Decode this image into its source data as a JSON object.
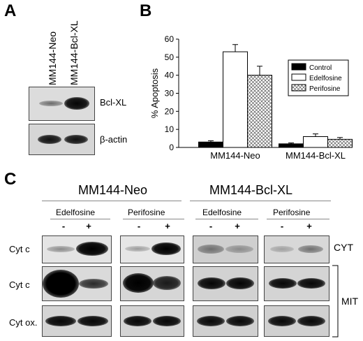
{
  "panels": {
    "a": "A",
    "b": "B",
    "c": "C"
  },
  "panel_a": {
    "lanes": [
      "MM144-Neo",
      "MM144-Bcl-XL"
    ],
    "rows": [
      "Bcl-XL",
      "β-actin"
    ]
  },
  "chart_data": {
    "type": "bar",
    "categories": [
      "MM144-Neo",
      "MM144-Bcl-XL"
    ],
    "series": [
      {
        "name": "Control",
        "values": [
          3,
          2
        ],
        "errors": [
          0.7,
          0.5
        ],
        "color": "#000000"
      },
      {
        "name": "Edelfosine",
        "values": [
          53,
          6
        ],
        "errors": [
          4,
          1.5
        ],
        "color": "#ffffff"
      },
      {
        "name": "Perifosine",
        "values": [
          40,
          4.5
        ],
        "errors": [
          5,
          1
        ],
        "color": "crosshatch"
      }
    ],
    "ylabel": "% Apoptosis",
    "ylim": [
      0,
      60
    ],
    "yticks": [
      "0",
      "10",
      "20",
      "30",
      "40",
      "50",
      "60"
    ],
    "legend": "right"
  },
  "panel_c": {
    "groups": [
      "MM144-Neo",
      "MM144-Bcl-XL"
    ],
    "drugs": [
      "Edelfosine",
      "Perifosine",
      "Edelfosine",
      "Perifosine"
    ],
    "signs": [
      "-",
      "+"
    ],
    "rows": [
      "Cyt c",
      "Cyt c",
      "Cyt ox."
    ],
    "compartments": [
      "CYT",
      "MIT"
    ]
  }
}
